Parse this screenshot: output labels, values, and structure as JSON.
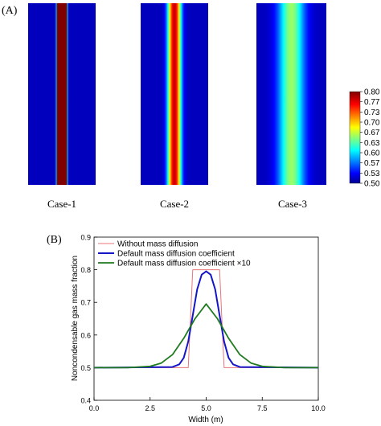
{
  "panel_a": {
    "label": "(A)",
    "cases": [
      "Case-1",
      "Case-2",
      "Case-3"
    ],
    "colorbar": {
      "ticks": [
        "0.80",
        "0.77",
        "0.73",
        "0.70",
        "0.67",
        "0.63",
        "0.60",
        "0.57",
        "0.53",
        "0.50"
      ],
      "range": [
        0.5,
        0.8
      ]
    }
  },
  "panel_b": {
    "label": "(B)"
  },
  "chart_data": [
    {
      "type": "heatmap",
      "title": "",
      "colorbar_range": [
        0.5,
        0.8
      ],
      "colorbar_ticks": [
        0.8,
        0.77,
        0.73,
        0.7,
        0.67,
        0.63,
        0.6,
        0.57,
        0.53,
        0.5
      ],
      "panels": [
        {
          "name": "Case-1",
          "peak": 0.8,
          "center": 0.5,
          "stripe_width": 0.16,
          "edge_sigma": 0.005
        },
        {
          "name": "Case-2",
          "peak": 0.8,
          "center": 0.5,
          "stripe_width": 0.16,
          "edge_sigma": 0.045
        },
        {
          "name": "Case-3",
          "peak": 0.8,
          "center": 0.5,
          "stripe_width": 0.16,
          "edge_sigma": 0.12
        }
      ]
    },
    {
      "type": "line",
      "title": "",
      "xlabel": "Width (m)",
      "ylabel": "Noncondensable gas mass fraction",
      "xlim": [
        0,
        10
      ],
      "ylim": [
        0.4,
        0.9
      ],
      "xticks": [
        "0.0",
        "2.5",
        "5.0",
        "7.5",
        "10.0"
      ],
      "yticks": [
        "0.4",
        "0.5",
        "0.6",
        "0.7",
        "0.8",
        "0.9"
      ],
      "legend": "top-left",
      "series": [
        {
          "name": "Without mass diffusion",
          "color": "#e8767a",
          "x": [
            0,
            4.2,
            4.4,
            5.6,
            5.8,
            10
          ],
          "y": [
            0.5,
            0.5,
            0.8,
            0.8,
            0.5,
            0.5
          ]
        },
        {
          "name": "Default mass diffusion coefficient",
          "color": "#1515c8",
          "x": [
            0,
            3.5,
            3.8,
            4.0,
            4.2,
            4.4,
            4.6,
            4.8,
            5.0,
            5.2,
            5.4,
            5.6,
            5.8,
            6.0,
            6.2,
            6.5,
            10
          ],
          "y": [
            0.5,
            0.502,
            0.51,
            0.53,
            0.58,
            0.66,
            0.74,
            0.785,
            0.795,
            0.785,
            0.74,
            0.66,
            0.58,
            0.53,
            0.51,
            0.502,
            0.5
          ]
        },
        {
          "name": "Default mass diffusion coefficient  ×10",
          "color": "#1f7a1f",
          "x": [
            0,
            1.5,
            2.5,
            3.0,
            3.5,
            4.0,
            4.5,
            5.0,
            5.5,
            6.0,
            6.5,
            7.0,
            7.5,
            8.5,
            10
          ],
          "y": [
            0.5,
            0.5,
            0.504,
            0.514,
            0.54,
            0.59,
            0.65,
            0.695,
            0.65,
            0.59,
            0.54,
            0.514,
            0.504,
            0.5,
            0.5
          ]
        }
      ]
    }
  ]
}
